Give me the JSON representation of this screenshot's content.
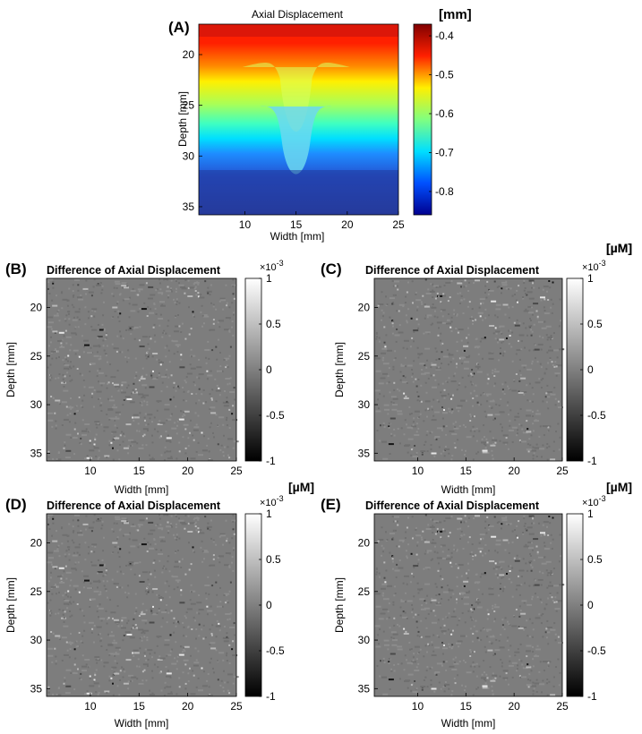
{
  "chart_data": [
    {
      "type": "heatmap",
      "panel": "(A)",
      "title": "Axial Displacement",
      "unit": "[mm]",
      "xlabel": "Width [mm]",
      "ylabel": "Depth [mm]",
      "xlim": [
        5.5,
        25
      ],
      "ylim": [
        17,
        35.8
      ],
      "xticks": [
        10,
        15,
        20,
        25
      ],
      "yticks": [
        20,
        25,
        30,
        35
      ],
      "colormap": "jet",
      "colorbar": {
        "min": -0.86,
        "max": -0.37,
        "ticks": [
          -0.4,
          -0.5,
          -0.6,
          -0.7,
          -0.8
        ]
      },
      "color_scale": [
        "#00008f",
        "#0050ff",
        "#00dfff",
        "#80ff80",
        "#ffef00",
        "#ff2000",
        "#800000"
      ],
      "highlight_colors": {
        "top": "#c01010",
        "valley": "#6cd8f0",
        "bottom": "#233a98"
      }
    },
    {
      "type": "heatmap",
      "panel": "(B)",
      "title": "Difference of Axial Displacement",
      "unit": "[µM]",
      "exponent_base": "×10",
      "exponent": "-3",
      "xlabel": "Width [mm]",
      "ylabel": "Depth [mm]",
      "xlim": [
        5.5,
        25
      ],
      "ylim": [
        17,
        35.8
      ],
      "xticks": [
        10,
        15,
        20,
        25
      ],
      "yticks": [
        20,
        25,
        30,
        35
      ],
      "colormap": "gray",
      "colorbar": {
        "min": -1,
        "max": 1,
        "ticks": [
          1,
          0.5,
          0,
          -0.5,
          -1
        ]
      }
    },
    {
      "type": "heatmap",
      "panel": "(C)",
      "title": "Difference of Axial Displacement",
      "unit": "[µM]",
      "exponent_base": "×10",
      "exponent": "-3",
      "xlabel": "Width [mm]",
      "ylabel": "Depth [mm]",
      "xlim": [
        5.5,
        25
      ],
      "ylim": [
        17,
        35.8
      ],
      "xticks": [
        10,
        15,
        20,
        25
      ],
      "yticks": [
        20,
        25,
        30,
        35
      ],
      "colormap": "gray",
      "colorbar": {
        "min": -1,
        "max": 1,
        "ticks": [
          1,
          0.5,
          0,
          -0.5,
          -1
        ]
      }
    },
    {
      "type": "heatmap",
      "panel": "(D)",
      "title": "Difference of Axial Displacement",
      "unit": "[µM]",
      "exponent_base": "×10",
      "exponent": "-3",
      "xlabel": "Width [mm]",
      "ylabel": "Depth [mm]",
      "xlim": [
        5.5,
        25
      ],
      "ylim": [
        17,
        35.8
      ],
      "xticks": [
        10,
        15,
        20,
        25
      ],
      "yticks": [
        20,
        25,
        30,
        35
      ],
      "colormap": "gray",
      "colorbar": {
        "min": -1,
        "max": 1,
        "ticks": [
          1,
          0.5,
          0,
          -0.5,
          -1
        ]
      }
    },
    {
      "type": "heatmap",
      "panel": "(E)",
      "title": "Difference of Axial Displacement",
      "unit": "[µM]",
      "exponent_base": "×10",
      "exponent": "-3",
      "xlabel": "Width [mm]",
      "ylabel": "Depth [mm]",
      "xlim": [
        5.5,
        25
      ],
      "ylim": [
        17,
        35.8
      ],
      "xticks": [
        10,
        15,
        20,
        25
      ],
      "yticks": [
        20,
        25,
        30,
        35
      ],
      "colormap": "gray",
      "colorbar": {
        "min": -1,
        "max": 1,
        "ticks": [
          1,
          0.5,
          0,
          -0.5,
          -1
        ]
      }
    }
  ]
}
